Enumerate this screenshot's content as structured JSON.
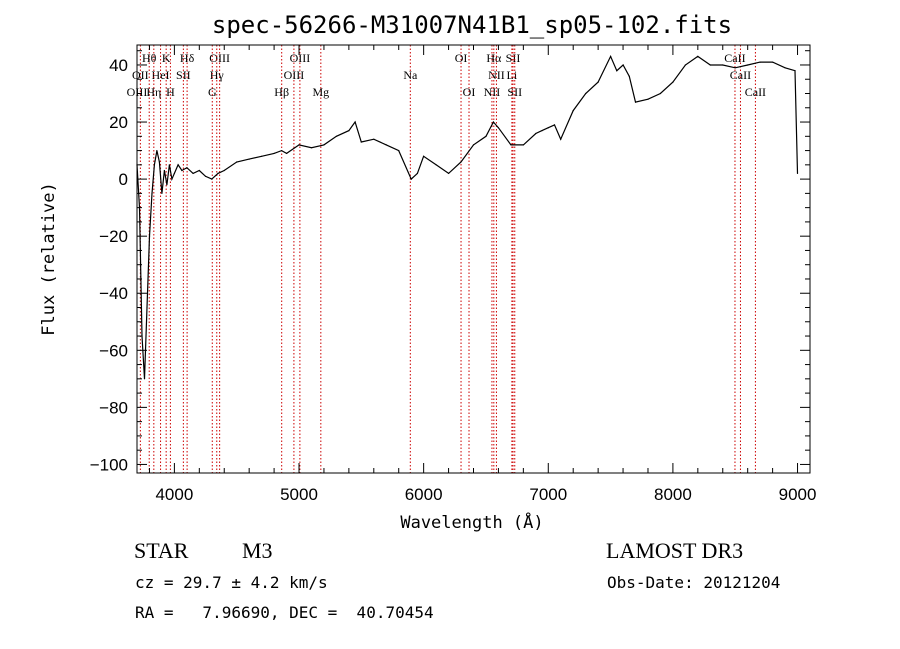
{
  "chart_data": {
    "type": "line",
    "title": "spec-56266-M31007N41B1_sp05-102.fits",
    "xlabel": "Wavelength (Å)",
    "ylabel": "Flux (relative)",
    "xlim": [
      3700,
      9100
    ],
    "ylim": [
      -103,
      47
    ],
    "xticks": [
      4000,
      5000,
      6000,
      7000,
      8000,
      9000
    ],
    "yticks": [
      -100,
      -80,
      -60,
      -40,
      -20,
      0,
      20,
      40
    ],
    "spectrum": {
      "x": [
        3700,
        3720,
        3740,
        3760,
        3780,
        3800,
        3820,
        3840,
        3860,
        3880,
        3900,
        3920,
        3940,
        3960,
        3980,
        4000,
        4030,
        4060,
        4100,
        4150,
        4200,
        4250,
        4300,
        4350,
        4400,
        4500,
        4600,
        4700,
        4800,
        4860,
        4900,
        5000,
        5100,
        5200,
        5300,
        5400,
        5450,
        5500,
        5600,
        5700,
        5800,
        5900,
        5950,
        6000,
        6100,
        6200,
        6300,
        6400,
        6500,
        6560,
        6600,
        6700,
        6800,
        6900,
        6950,
        7000,
        7050,
        7100,
        7200,
        7300,
        7400,
        7500,
        7550,
        7600,
        7650,
        7700,
        7800,
        7900,
        8000,
        8100,
        8200,
        8300,
        8400,
        8500,
        8600,
        8700,
        8800,
        8900,
        8980,
        9000
      ],
      "y": [
        5,
        -10,
        -55,
        -70,
        -45,
        -20,
        -5,
        5,
        10,
        6,
        -5,
        3,
        -2,
        5,
        0,
        2,
        5,
        3,
        4,
        2,
        3,
        1,
        0,
        2,
        3,
        6,
        7,
        8,
        9,
        10,
        9,
        12,
        11,
        12,
        15,
        17,
        20,
        13,
        14,
        12,
        10,
        0,
        2,
        8,
        5,
        2,
        6,
        12,
        15,
        20,
        18,
        12,
        12,
        16,
        17,
        18,
        19,
        14,
        24,
        30,
        34,
        43,
        38,
        40,
        36,
        27,
        28,
        30,
        34,
        40,
        43,
        40,
        40,
        39,
        40,
        41,
        41,
        39,
        38,
        2
      ]
    },
    "spectral_lines": [
      {
        "label": "Hθ",
        "wl": 3798,
        "row": 1
      },
      {
        "label": "K",
        "wl": 3934,
        "row": 1
      },
      {
        "label": "Hδ",
        "wl": 4102,
        "row": 1
      },
      {
        "label": "OIII",
        "wl": 4363,
        "row": 1
      },
      {
        "label": "OIII",
        "wl": 5007,
        "row": 1
      },
      {
        "label": "OI",
        "wl": 6300,
        "row": 1
      },
      {
        "label": "Hα",
        "wl": 6563,
        "row": 1
      },
      {
        "label": "SII",
        "wl": 6717,
        "row": 1
      },
      {
        "label": "CaII",
        "wl": 8498,
        "row": 1
      },
      {
        "label": "OII",
        "wl": 3727,
        "row": 2
      },
      {
        "label": "HeI",
        "wl": 3889,
        "row": 2
      },
      {
        "label": "SII",
        "wl": 4072,
        "row": 2
      },
      {
        "label": "Hγ",
        "wl": 4340,
        "row": 2
      },
      {
        "label": "OIII",
        "wl": 4959,
        "row": 2
      },
      {
        "label": "Na",
        "wl": 5893,
        "row": 2
      },
      {
        "label": "NII",
        "wl": 6584,
        "row": 2
      },
      {
        "label": "Li",
        "wl": 6708,
        "row": 2
      },
      {
        "label": "CaII",
        "wl": 8542,
        "row": 2
      },
      {
        "label": "OIII",
        "wl": 3700,
        "row": 3
      },
      {
        "label": "Hη",
        "wl": 3835,
        "row": 3
      },
      {
        "label": "H",
        "wl": 3968,
        "row": 3
      },
      {
        "label": "G",
        "wl": 4304,
        "row": 3
      },
      {
        "label": "Hβ",
        "wl": 4861,
        "row": 3
      },
      {
        "label": "Mg",
        "wl": 5175,
        "row": 3
      },
      {
        "label": "OI",
        "wl": 6364,
        "row": 3
      },
      {
        "label": "NII",
        "wl": 6548,
        "row": 3
      },
      {
        "label": "SII",
        "wl": 6731,
        "row": 3
      },
      {
        "label": "CaII",
        "wl": 8662,
        "row": 3
      }
    ]
  },
  "info": {
    "object_type": "STAR",
    "subclass": "M3",
    "survey": "LAMOST DR3",
    "cz": "cz = 29.7 ± 4.2 km/s",
    "obs_date": "Obs-Date: 20121204",
    "coords": "RA =   7.96690, DEC =  40.70454"
  }
}
